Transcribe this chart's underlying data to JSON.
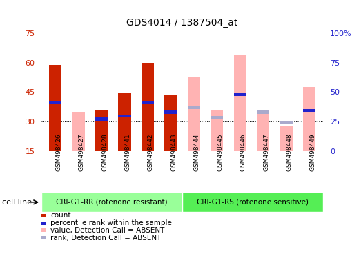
{
  "title": "GDS4014 / 1387504_at",
  "samples": [
    "GSM498426",
    "GSM498427",
    "GSM498428",
    "GSM498441",
    "GSM498442",
    "GSM498443",
    "GSM498444",
    "GSM498445",
    "GSM498446",
    "GSM498447",
    "GSM498448",
    "GSM498449"
  ],
  "group1_count": 6,
  "group1_label": "CRI-G1-RR (rotenone resistant)",
  "group2_label": "CRI-G1-RS (rotenone sensitive)",
  "cell_line_label": "cell line",
  "ylim_left": [
    15,
    75
  ],
  "ylim_right": [
    0,
    100
  ],
  "yticks_left": [
    15,
    30,
    45,
    60,
    75
  ],
  "yticks_right": [
    0,
    25,
    50,
    75,
    100
  ],
  "ytick_labels_right": [
    "0",
    "25",
    "50",
    "75",
    "100%"
  ],
  "count_bars": [
    59.0,
    0,
    36.0,
    44.5,
    59.5,
    43.5,
    0,
    0,
    0,
    0,
    0,
    0
  ],
  "percentile_bars": [
    40.5,
    0,
    32.0,
    33.5,
    40.5,
    35.5,
    0,
    0,
    44.5,
    0,
    0,
    36.5
  ],
  "absent_value_bars": [
    0,
    34.5,
    0,
    0,
    0,
    0,
    52.5,
    35.5,
    64.0,
    35.5,
    27.5,
    47.5
  ],
  "absent_rank_bars": [
    0,
    0,
    0,
    0,
    0,
    0,
    38.0,
    33.0,
    0,
    35.5,
    30.5,
    0
  ],
  "bar_width": 0.55,
  "count_color": "#cc2200",
  "percentile_color": "#2222cc",
  "absent_value_color": "#ffb3b3",
  "absent_rank_color": "#aaaacc",
  "group1_bg": "#99ff99",
  "group2_bg": "#55ee55",
  "tick_area_bg": "#d8d8d8",
  "grid_color": "black",
  "left_tick_color": "#cc2200",
  "right_tick_color": "#2222cc",
  "legend_items": [
    {
      "label": "count",
      "color": "#cc2200"
    },
    {
      "label": "percentile rank within the sample",
      "color": "#2222cc"
    },
    {
      "label": "value, Detection Call = ABSENT",
      "color": "#ffb3b3"
    },
    {
      "label": "rank, Detection Call = ABSENT",
      "color": "#aaaacc"
    }
  ]
}
